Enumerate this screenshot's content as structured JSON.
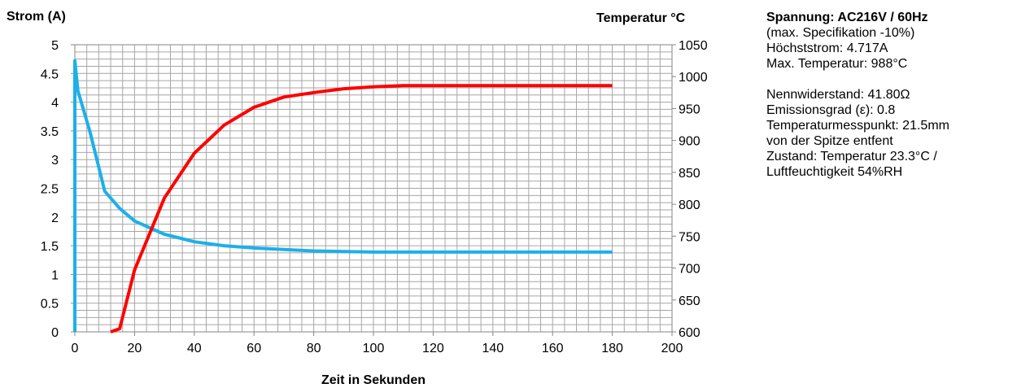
{
  "chart_data": {
    "type": "line",
    "xlabel": "Zeit in Sekunden",
    "ylabel_left": "Strom (A)",
    "ylabel_right": "Temperatur °C",
    "xlim": [
      0,
      200
    ],
    "ylim_left": [
      0,
      5
    ],
    "ylim_right": [
      600,
      1050
    ],
    "x_ticks": [
      "0",
      "20",
      "40",
      "60",
      "80",
      "100",
      "120",
      "140",
      "160",
      "180",
      "200"
    ],
    "y_left_ticks": [
      "0",
      "0.5",
      "1",
      "1.5",
      "2",
      "2.5",
      "3",
      "3.5",
      "4",
      "4.5",
      "5"
    ],
    "y_right_ticks": [
      "600",
      "650",
      "700",
      "750",
      "800",
      "850",
      "900",
      "950",
      "1000",
      "1050"
    ],
    "grid": true,
    "series": [
      {
        "axis": "left",
        "color": "#1cb0e8",
        "points": [
          [
            0,
            0
          ],
          [
            0,
            4.72
          ],
          [
            1,
            4.2
          ],
          [
            5,
            3.5
          ],
          [
            10,
            2.45
          ],
          [
            15,
            2.15
          ],
          [
            20,
            1.93
          ],
          [
            30,
            1.7
          ],
          [
            40,
            1.57
          ],
          [
            50,
            1.5
          ],
          [
            60,
            1.46
          ],
          [
            80,
            1.41
          ],
          [
            100,
            1.39
          ],
          [
            120,
            1.39
          ],
          [
            140,
            1.39
          ],
          [
            160,
            1.39
          ],
          [
            180,
            1.39
          ]
        ]
      },
      {
        "axis": "right",
        "color": "#ff0000",
        "points": [
          [
            12,
            600
          ],
          [
            15,
            605
          ],
          [
            20,
            697
          ],
          [
            30,
            810
          ],
          [
            40,
            880
          ],
          [
            50,
            924
          ],
          [
            60,
            952
          ],
          [
            70,
            968
          ],
          [
            80,
            975
          ],
          [
            90,
            981
          ],
          [
            100,
            984
          ],
          [
            110,
            986
          ],
          [
            120,
            986
          ],
          [
            140,
            986
          ],
          [
            160,
            986
          ],
          [
            180,
            986
          ]
        ]
      }
    ]
  },
  "info": {
    "title": "Spannung: AC216V / 60Hz",
    "spec": "(max. Specifikation -10%)",
    "max_current": "Höchststrom: 4.717A",
    "max_temp": "Max. Temperatur: 988°C",
    "resistance": "Nennwiderstand: 41.80Ω",
    "emissivity": "Emissionsgrad (ε): 0.8",
    "measure_point_1": "Temperaturmesspunkt: 21.5mm",
    "measure_point_2": "von der Spitze entfent",
    "condition_1": "Zustand: Temperatur 23.3°C /",
    "condition_2": "Luftfeuchtigkeit 54%RH"
  }
}
